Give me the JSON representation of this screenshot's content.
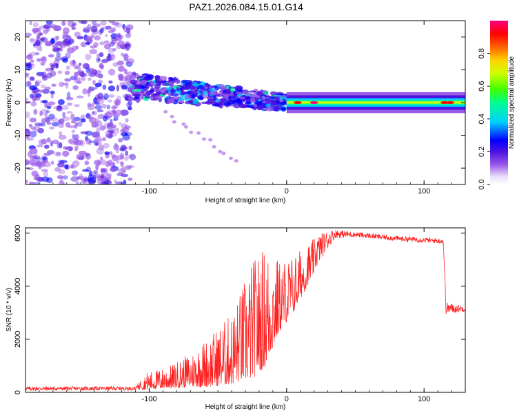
{
  "title": "PAZ1.2026.084.15.01.G14",
  "chart_data": [
    {
      "type": "heatmap",
      "xlabel": "Height of straight line (km)",
      "ylabel": "Frequency (Hz)",
      "xlim": [
        -190,
        130
      ],
      "ylim": [
        -25,
        25
      ],
      "xticks": [
        -100,
        0,
        100
      ],
      "yticks": [
        -20,
        -10,
        0,
        10,
        20
      ],
      "xtick_labels": [
        "-100",
        "0",
        "100"
      ],
      "ytick_labels": [
        "-20",
        "-10",
        "0",
        "10",
        "20"
      ],
      "colorbar": {
        "label": "Normalized spectral amplitude",
        "range": [
          0,
          1
        ],
        "ticks": [
          0.0,
          0.2,
          0.4,
          0.6,
          0.8
        ],
        "tick_labels": [
          "0.0",
          "0.2",
          "0.4",
          "0.6",
          "0.8"
        ]
      },
      "regions": [
        {
          "name": "noise",
          "x_range": [
            -190,
            -112
          ],
          "freq_range": [
            -25,
            25
          ],
          "amplitude": 0.1
        },
        {
          "name": "transition",
          "x_range": [
            -112,
            0
          ],
          "freq_center": [
            5,
            0
          ],
          "freq_spread_hz": 6,
          "amplitude": 0.3
        },
        {
          "name": "tone",
          "x_range": [
            0,
            130
          ],
          "freq_center": 0,
          "amplitude": 0.6,
          "peaks": [
            {
              "x": 8,
              "amp": 0.9
            },
            {
              "x": 20,
              "amp": 0.95
            },
            {
              "x": 115,
              "amp": 0.85
            },
            {
              "x": 119,
              "amp": 0.9
            }
          ]
        }
      ]
    },
    {
      "type": "line",
      "xlabel": "Height of straight line (km)",
      "ylabel": "SNR (10 * v/v)",
      "xlim": [
        -190,
        130
      ],
      "ylim": [
        0,
        6200
      ],
      "xticks": [
        -100,
        0,
        100
      ],
      "yticks": [
        0,
        2000,
        4000,
        6000
      ],
      "xtick_labels": [
        "-100",
        "0",
        "100"
      ],
      "ytick_labels": [
        "0",
        "2000",
        "4000",
        "6000"
      ],
      "color": "#ff2020",
      "envelope": [
        {
          "x": -190,
          "min": 60,
          "max": 220
        },
        {
          "x": -110,
          "min": 80,
          "max": 220
        },
        {
          "x": -102,
          "min": 100,
          "max": 750
        },
        {
          "x": -85,
          "min": 150,
          "max": 1000
        },
        {
          "x": -70,
          "min": 200,
          "max": 1500
        },
        {
          "x": -55,
          "min": 200,
          "max": 2200
        },
        {
          "x": -40,
          "min": 300,
          "max": 3000
        },
        {
          "x": -25,
          "min": 500,
          "max": 5000
        },
        {
          "x": -15,
          "min": 1000,
          "max": 5600
        },
        {
          "x": -5,
          "min": 2300,
          "max": 5000
        },
        {
          "x": 5,
          "min": 3000,
          "max": 5200
        },
        {
          "x": 15,
          "min": 4000,
          "max": 5600
        },
        {
          "x": 25,
          "min": 5000,
          "max": 6000
        },
        {
          "x": 35,
          "min": 5800,
          "max": 6150
        },
        {
          "x": 50,
          "min": 5850,
          "max": 6050
        },
        {
          "x": 80,
          "min": 5700,
          "max": 5900
        },
        {
          "x": 114,
          "min": 5600,
          "max": 5800
        },
        {
          "x": 116,
          "min": 2950,
          "max": 3400
        },
        {
          "x": 130,
          "min": 3050,
          "max": 3250
        }
      ]
    }
  ]
}
